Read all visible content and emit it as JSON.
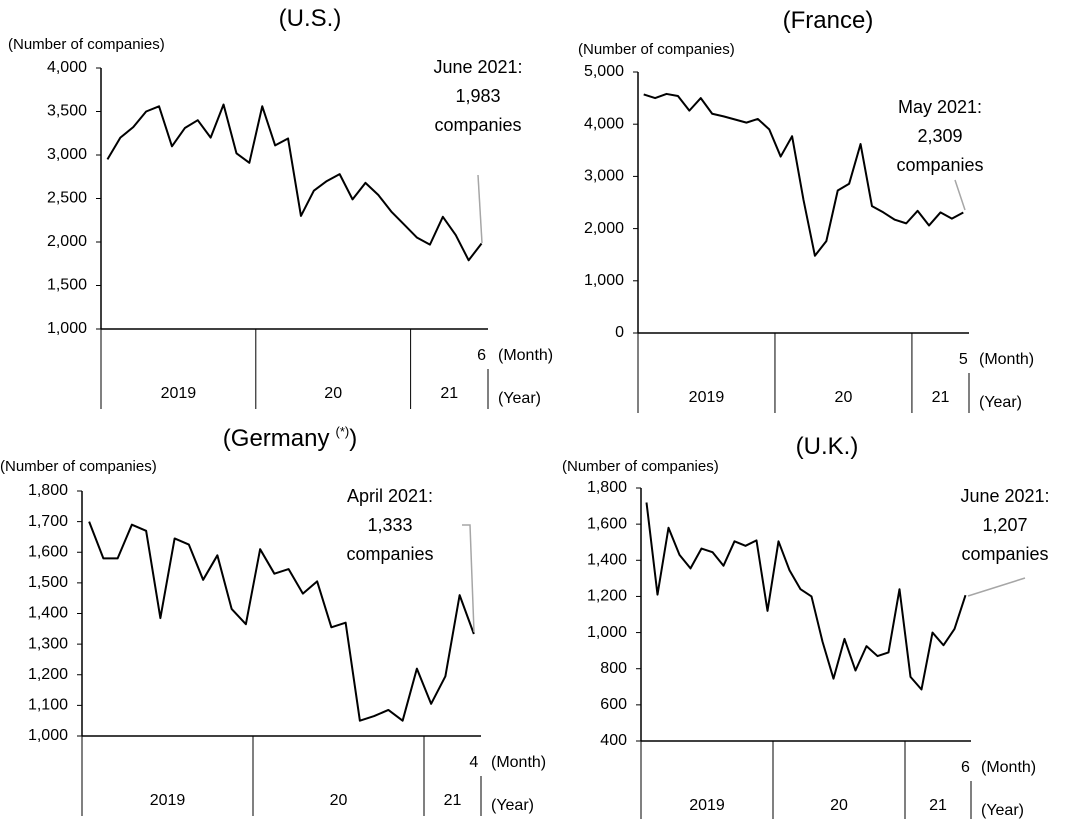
{
  "chart_data": [
    {
      "type": "line",
      "title": "(U.S.)",
      "y_label": "(Number of companies)",
      "month_unit": "(Month)",
      "year_unit": "(Year)",
      "categories": [
        null,
        null,
        null,
        null,
        null,
        null,
        null,
        null,
        null,
        null,
        null,
        null,
        null,
        null,
        null,
        null,
        null,
        null,
        null,
        null,
        null,
        null,
        null,
        null,
        null,
        null,
        null,
        null,
        null,
        "6"
      ],
      "year_groups": [
        {
          "label": "2019",
          "months": 12
        },
        {
          "label": "20",
          "months": 12
        },
        {
          "label": "21",
          "months": 6
        }
      ],
      "series": [
        {
          "name": "U.S.",
          "color": "#000000",
          "values": [
            2950,
            3200,
            3320,
            3500,
            3560,
            3100,
            3310,
            3400,
            3200,
            3580,
            3020,
            2910,
            3560,
            3110,
            3190,
            2300,
            2590,
            2700,
            2780,
            2490,
            2680,
            2540,
            2350,
            2200,
            2050,
            1970,
            2290,
            2080,
            1790,
            1983
          ]
        }
      ],
      "ylim": [
        1000,
        4000
      ],
      "yticks": [
        {
          "value": 1000,
          "label": "1,000"
        },
        {
          "value": 1500,
          "label": "1,500"
        },
        {
          "value": 2000,
          "label": "2,000"
        },
        {
          "value": 2500,
          "label": "2,500"
        },
        {
          "value": 3000,
          "label": "3,000"
        },
        {
          "value": 3500,
          "label": "3,500"
        },
        {
          "value": 4000,
          "label": "4,000"
        }
      ],
      "annotation": [
        "June 2021:",
        "1,983",
        "companies"
      ],
      "grid": false
    },
    {
      "type": "line",
      "title": "(France)",
      "y_label": "(Number of companies)",
      "month_unit": "(Month)",
      "year_unit": "(Year)",
      "categories": [
        null,
        null,
        null,
        null,
        null,
        null,
        null,
        null,
        null,
        null,
        null,
        null,
        null,
        null,
        null,
        null,
        null,
        null,
        null,
        null,
        null,
        null,
        null,
        null,
        null,
        null,
        null,
        null,
        "5"
      ],
      "year_groups": [
        {
          "label": "2019",
          "months": 12
        },
        {
          "label": "20",
          "months": 12
        },
        {
          "label": "21",
          "months": 5
        }
      ],
      "series": [
        {
          "name": "France",
          "color": "#000000",
          "values": [
            4570,
            4500,
            4580,
            4540,
            4260,
            4500,
            4200,
            4150,
            4090,
            4030,
            4100,
            3900,
            3380,
            3770,
            2550,
            1480,
            1760,
            2730,
            2860,
            3620,
            2430,
            2310,
            2170,
            2100,
            2340,
            2060,
            2310,
            2190,
            2309
          ]
        }
      ],
      "ylim": [
        0,
        5000
      ],
      "yticks": [
        0,
        {
          "value": 1000,
          "label": "1,000"
        },
        {
          "value": 2000,
          "label": "2,000"
        },
        {
          "value": 3000,
          "label": "3,000"
        },
        {
          "value": 4000,
          "label": "4,000"
        },
        {
          "value": 5000,
          "label": "5,000"
        }
      ],
      "annotation": [
        "May 2021:",
        "2,309",
        "companies"
      ],
      "grid": false
    },
    {
      "type": "line",
      "title": "(Germany",
      "title_sup": "(*)",
      "title_end": ")",
      "y_label": "(Number of companies)",
      "month_unit": "(Month)",
      "year_unit": "(Year)",
      "categories": [
        null,
        null,
        null,
        null,
        null,
        null,
        null,
        null,
        null,
        null,
        null,
        null,
        null,
        null,
        null,
        null,
        null,
        null,
        null,
        null,
        null,
        null,
        null,
        null,
        null,
        null,
        null,
        "4"
      ],
      "year_groups": [
        {
          "label": "2019",
          "months": 12
        },
        {
          "label": "20",
          "months": 12
        },
        {
          "label": "21",
          "months": 4
        }
      ],
      "series": [
        {
          "name": "Germany",
          "color": "#000000",
          "values": [
            1700,
            1580,
            1580,
            1690,
            1670,
            1385,
            1645,
            1625,
            1510,
            1590,
            1415,
            1365,
            1610,
            1530,
            1545,
            1465,
            1505,
            1355,
            1370,
            1050,
            1065,
            1085,
            1050,
            1220,
            1105,
            1195,
            1460,
            1333
          ]
        }
      ],
      "ylim": [
        1000,
        1800
      ],
      "yticks": [
        {
          "value": 1000,
          "label": "1,000"
        },
        {
          "value": 1100,
          "label": "1,100"
        },
        {
          "value": 1200,
          "label": "1,200"
        },
        {
          "value": 1300,
          "label": "1,300"
        },
        {
          "value": 1400,
          "label": "1,400"
        },
        {
          "value": 1500,
          "label": "1,500"
        },
        {
          "value": 1600,
          "label": "1,600"
        },
        {
          "value": 1700,
          "label": "1,700"
        },
        {
          "value": 1800,
          "label": "1,800"
        }
      ],
      "annotation": [
        "April 2021:",
        "1,333",
        "companies"
      ],
      "grid": false
    },
    {
      "type": "line",
      "title": "(U.K.)",
      "y_label": "(Number of companies)",
      "month_unit": "(Month)",
      "year_unit": "(Year)",
      "categories": [
        null,
        null,
        null,
        null,
        null,
        null,
        null,
        null,
        null,
        null,
        null,
        null,
        null,
        null,
        null,
        null,
        null,
        null,
        null,
        null,
        null,
        null,
        null,
        null,
        null,
        null,
        null,
        null,
        null,
        "6"
      ],
      "year_groups": [
        {
          "label": "2019",
          "months": 12
        },
        {
          "label": "20",
          "months": 12
        },
        {
          "label": "21",
          "months": 6
        }
      ],
      "series": [
        {
          "name": "U.K.",
          "color": "#000000",
          "values": [
            1720,
            1210,
            1580,
            1430,
            1355,
            1465,
            1445,
            1370,
            1505,
            1480,
            1510,
            1120,
            1505,
            1345,
            1240,
            1200,
            950,
            745,
            965,
            790,
            925,
            870,
            890,
            1240,
            755,
            685,
            1000,
            930,
            1020,
            1207
          ]
        }
      ],
      "ylim": [
        400,
        1800
      ],
      "yticks": [
        400,
        600,
        800,
        {
          "value": 1000,
          "label": "1,000"
        },
        {
          "value": 1200,
          "label": "1,200"
        },
        {
          "value": 1400,
          "label": "1,400"
        },
        {
          "value": 1600,
          "label": "1,600"
        },
        {
          "value": 1800,
          "label": "1,800"
        }
      ],
      "annotation": [
        "June 2021:",
        "1,207",
        "companies"
      ],
      "grid": false
    }
  ]
}
